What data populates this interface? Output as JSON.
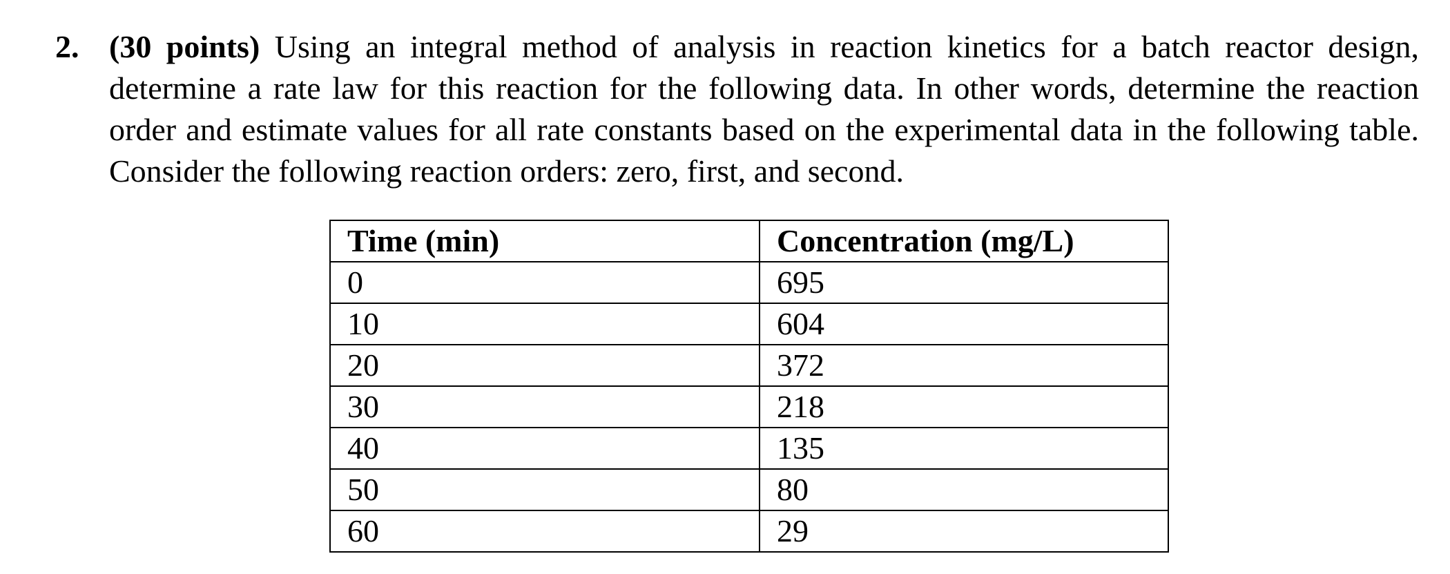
{
  "question": {
    "number": "2.",
    "points": "(30 points)",
    "text": " Using an integral method of analysis in reaction kinetics for a batch reactor design, determine a rate law for this reaction for the following data. In other words, determine the reaction order and estimate values for all rate constants based on the experimental data in the following table. Consider the following reaction orders: zero, first, and second."
  },
  "table": {
    "headers": [
      "Time (min)",
      "Concentration (mg/L)"
    ],
    "rows": [
      [
        "0",
        "695"
      ],
      [
        "10",
        "604"
      ],
      [
        "20",
        "372"
      ],
      [
        "30",
        "218"
      ],
      [
        "40",
        "135"
      ],
      [
        "50",
        "80"
      ],
      [
        "60",
        "29"
      ]
    ]
  }
}
